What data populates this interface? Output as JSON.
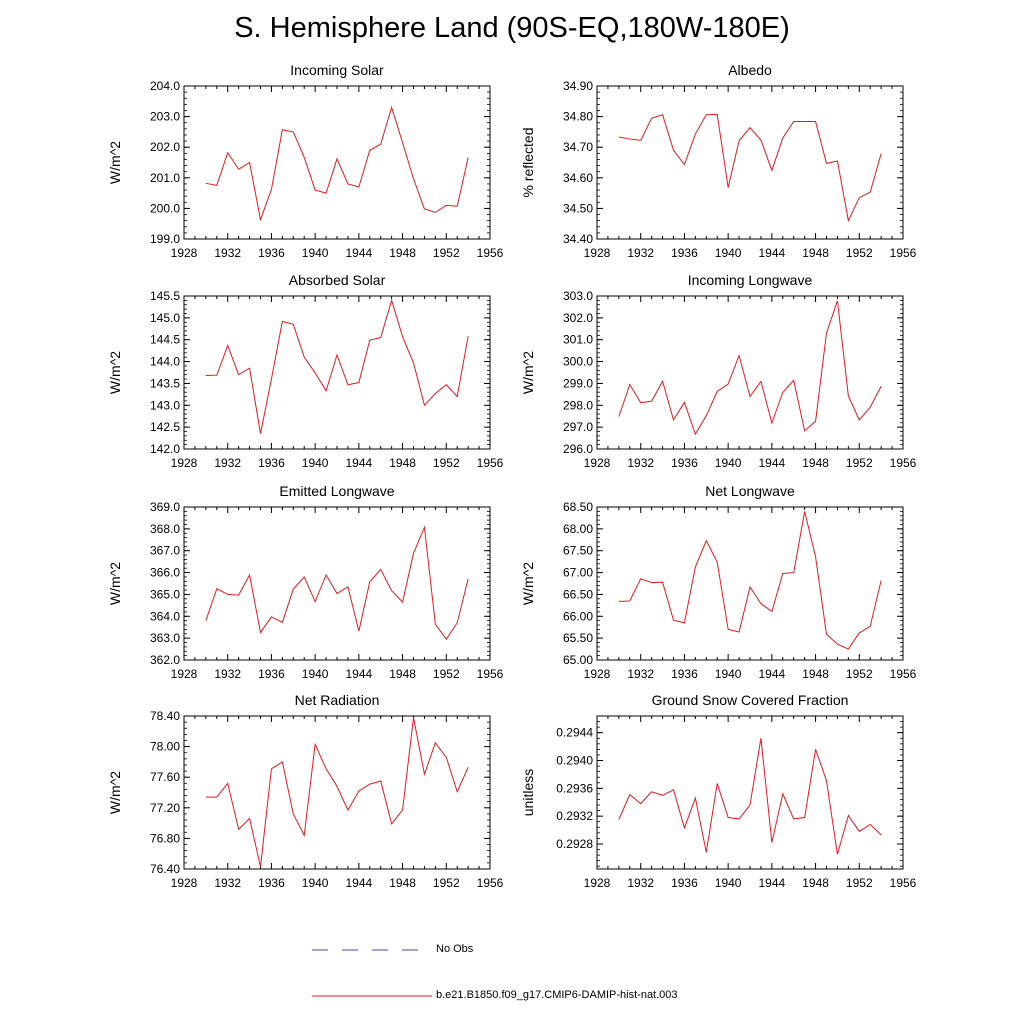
{
  "title": "S. Hemisphere Land (90S-EQ,180W-180E)",
  "legend": {
    "obs_label": "No Obs",
    "model_label": "b.e21.B1850.f09_g17.CMIP6-DAMIP-hist-nat.003",
    "obs_color": "#4a4aaa",
    "model_color": "#e41a1c"
  },
  "chart_data": [
    {
      "type": "line",
      "title": "Incoming Solar",
      "ylabel": "W/m^2",
      "ylim": [
        199.0,
        204.0
      ],
      "yticks": [
        "199.0",
        "200.0",
        "201.0",
        "202.0",
        "203.0",
        "204.0"
      ],
      "xlim": [
        1928,
        1956
      ],
      "xticks": [
        "1928",
        "1932",
        "1936",
        "1940",
        "1944",
        "1948",
        "1952",
        "1956"
      ],
      "x": [
        1930,
        1931,
        1932,
        1933,
        1934,
        1935,
        1936,
        1937,
        1938,
        1939,
        1940,
        1941,
        1942,
        1943,
        1944,
        1945,
        1946,
        1947,
        1948,
        1949,
        1950,
        1951,
        1952,
        1953,
        1954
      ],
      "series": [
        {
          "values": [
            200.82,
            200.75,
            201.82,
            201.28,
            201.5,
            199.63,
            200.62,
            202.57,
            202.5,
            201.67,
            200.6,
            200.5,
            201.62,
            200.8,
            200.7,
            201.9,
            202.1,
            203.3,
            202.15,
            200.97,
            199.98,
            199.87,
            200.1,
            200.07,
            201.66
          ]
        }
      ]
    },
    {
      "type": "line",
      "title": "Albedo",
      "ylabel": "% reflected",
      "ylim": [
        34.4,
        34.9
      ],
      "yticks": [
        "34.40",
        "34.50",
        "34.60",
        "34.70",
        "34.80",
        "34.90"
      ],
      "xlim": [
        1928,
        1956
      ],
      "xticks": [
        "1928",
        "1932",
        "1936",
        "1940",
        "1944",
        "1948",
        "1952",
        "1956"
      ],
      "x": [
        1930,
        1931,
        1932,
        1933,
        1934,
        1935,
        1936,
        1937,
        1938,
        1939,
        1940,
        1941,
        1942,
        1943,
        1944,
        1945,
        1946,
        1947,
        1948,
        1949,
        1950,
        1951,
        1952,
        1953,
        1954
      ],
      "series": [
        {
          "values": [
            34.733,
            34.727,
            34.722,
            34.795,
            34.806,
            34.69,
            34.643,
            34.743,
            34.806,
            34.807,
            34.568,
            34.721,
            34.764,
            34.723,
            34.624,
            34.73,
            34.784,
            34.784,
            34.784,
            34.647,
            34.655,
            34.46,
            34.535,
            34.553,
            34.679
          ]
        }
      ]
    },
    {
      "type": "line",
      "title": "Absorbed Solar",
      "ylabel": "W/m^2",
      "ylim": [
        142.0,
        145.5
      ],
      "yticks": [
        "142.0",
        "142.5",
        "143.0",
        "143.5",
        "144.0",
        "144.5",
        "145.0",
        "145.5"
      ],
      "xlim": [
        1928,
        1956
      ],
      "xticks": [
        "1928",
        "1932",
        "1936",
        "1940",
        "1944",
        "1948",
        "1952",
        "1956"
      ],
      "x": [
        1930,
        1931,
        1932,
        1933,
        1934,
        1935,
        1936,
        1937,
        1938,
        1939,
        1940,
        1941,
        1942,
        1943,
        1944,
        1945,
        1946,
        1947,
        1948,
        1949,
        1950,
        1951,
        1952,
        1953,
        1954
      ],
      "series": [
        {
          "values": [
            143.68,
            143.69,
            144.37,
            143.7,
            143.85,
            142.35,
            143.6,
            144.92,
            144.85,
            144.1,
            143.74,
            143.33,
            144.15,
            143.47,
            143.52,
            144.49,
            144.55,
            145.4,
            144.57,
            143.97,
            143.0,
            143.27,
            143.47,
            143.2,
            144.58
          ]
        }
      ]
    },
    {
      "type": "line",
      "title": "Incoming Longwave",
      "ylabel": "W/m^2",
      "ylim": [
        296.0,
        303.0
      ],
      "yticks": [
        "296.0",
        "297.0",
        "298.0",
        "299.0",
        "300.0",
        "301.0",
        "302.0",
        "303.0"
      ],
      "xlim": [
        1928,
        1956
      ],
      "xticks": [
        "1928",
        "1932",
        "1936",
        "1940",
        "1944",
        "1948",
        "1952",
        "1956"
      ],
      "x": [
        1930,
        1931,
        1932,
        1933,
        1934,
        1935,
        1936,
        1937,
        1938,
        1939,
        1940,
        1941,
        1942,
        1943,
        1944,
        1945,
        1946,
        1947,
        1948,
        1949,
        1950,
        1951,
        1952,
        1953,
        1954
      ],
      "series": [
        {
          "values": [
            297.48,
            298.95,
            298.12,
            298.19,
            299.1,
            297.33,
            298.13,
            296.68,
            297.52,
            298.63,
            298.97,
            300.28,
            298.4,
            299.09,
            297.19,
            298.59,
            299.14,
            296.83,
            297.27,
            301.31,
            302.78,
            298.43,
            297.33,
            297.91,
            298.87
          ]
        }
      ]
    },
    {
      "type": "line",
      "title": "Emitted Longwave",
      "ylabel": "W/m^2",
      "ylim": [
        362.0,
        369.0
      ],
      "yticks": [
        "362.0",
        "363.0",
        "364.0",
        "365.0",
        "366.0",
        "367.0",
        "368.0",
        "369.0"
      ],
      "xlim": [
        1928,
        1956
      ],
      "xticks": [
        "1928",
        "1932",
        "1936",
        "1940",
        "1944",
        "1948",
        "1952",
        "1956"
      ],
      "x": [
        1930,
        1931,
        1932,
        1933,
        1934,
        1935,
        1936,
        1937,
        1938,
        1939,
        1940,
        1941,
        1942,
        1943,
        1944,
        1945,
        1946,
        1947,
        1948,
        1949,
        1950,
        1951,
        1952,
        1953,
        1954
      ],
      "series": [
        {
          "values": [
            363.8,
            365.26,
            365.0,
            364.97,
            365.89,
            363.26,
            363.97,
            363.72,
            365.24,
            365.8,
            364.67,
            365.89,
            365.04,
            365.35,
            363.32,
            365.58,
            366.14,
            365.17,
            364.65,
            366.88,
            368.07,
            363.64,
            362.95,
            363.7,
            365.71
          ]
        }
      ]
    },
    {
      "type": "line",
      "title": "Net Longwave",
      "ylabel": "W/m^2",
      "ylim": [
        65.0,
        68.5
      ],
      "yticks": [
        "65.00",
        "65.50",
        "66.00",
        "66.50",
        "67.00",
        "67.50",
        "68.00",
        "68.50"
      ],
      "xlim": [
        1928,
        1956
      ],
      "xticks": [
        "1928",
        "1932",
        "1936",
        "1940",
        "1944",
        "1948",
        "1952",
        "1956"
      ],
      "x": [
        1930,
        1931,
        1932,
        1933,
        1934,
        1935,
        1936,
        1937,
        1938,
        1939,
        1940,
        1941,
        1942,
        1943,
        1944,
        1945,
        1946,
        1947,
        1948,
        1949,
        1950,
        1951,
        1952,
        1953,
        1954
      ],
      "series": [
        {
          "values": [
            66.34,
            66.35,
            66.86,
            66.77,
            66.78,
            65.91,
            65.85,
            67.13,
            67.73,
            67.24,
            65.7,
            65.64,
            66.67,
            66.29,
            66.11,
            66.98,
            67.0,
            68.4,
            67.36,
            65.59,
            65.36,
            65.25,
            65.62,
            65.77,
            66.82
          ]
        }
      ]
    },
    {
      "type": "line",
      "title": "Net Radiation",
      "ylabel": "W/m^2",
      "ylim": [
        76.4,
        78.4
      ],
      "yticks": [
        "76.40",
        "76.80",
        "77.20",
        "77.60",
        "78.00",
        "78.40"
      ],
      "xlim": [
        1928,
        1956
      ],
      "xticks": [
        "1928",
        "1932",
        "1936",
        "1940",
        "1944",
        "1948",
        "1952",
        "1956"
      ],
      "x": [
        1930,
        1931,
        1932,
        1933,
        1934,
        1935,
        1936,
        1937,
        1938,
        1939,
        1940,
        1941,
        1942,
        1943,
        1944,
        1945,
        1946,
        1947,
        1948,
        1949,
        1950,
        1951,
        1952,
        1953,
        1954
      ],
      "series": [
        {
          "values": [
            77.34,
            77.34,
            77.52,
            76.92,
            77.06,
            76.43,
            77.71,
            77.8,
            77.12,
            76.84,
            78.03,
            77.71,
            77.48,
            77.17,
            77.42,
            77.51,
            77.55,
            76.99,
            77.17,
            78.38,
            77.64,
            78.05,
            77.86,
            77.41,
            77.73
          ]
        }
      ]
    },
    {
      "type": "line",
      "title": "Ground Snow Covered Fraction",
      "ylabel": "unitless",
      "ylim": [
        0.29244,
        0.29464
      ],
      "yticks": [
        "0.2928",
        "0.2932",
        "0.2936",
        "0.2940",
        "0.2944"
      ],
      "ytick_values": [
        0.2928,
        0.2932,
        0.2936,
        0.294,
        0.2944
      ],
      "xlim": [
        1928,
        1956
      ],
      "xticks": [
        "1928",
        "1932",
        "1936",
        "1940",
        "1944",
        "1948",
        "1952",
        "1956"
      ],
      "x": [
        1930,
        1931,
        1932,
        1933,
        1934,
        1935,
        1936,
        1937,
        1938,
        1939,
        1940,
        1941,
        1942,
        1943,
        1944,
        1945,
        1946,
        1947,
        1948,
        1949,
        1950,
        1951,
        1952,
        1953,
        1954
      ],
      "series": [
        {
          "values": [
            0.29315,
            0.29351,
            0.29338,
            0.29355,
            0.2935,
            0.29358,
            0.29303,
            0.29346,
            0.29268,
            0.29367,
            0.29318,
            0.29316,
            0.29336,
            0.29432,
            0.29282,
            0.29352,
            0.29316,
            0.29318,
            0.29416,
            0.29371,
            0.29265,
            0.29321,
            0.29298,
            0.29308,
            0.29293
          ]
        }
      ]
    }
  ]
}
